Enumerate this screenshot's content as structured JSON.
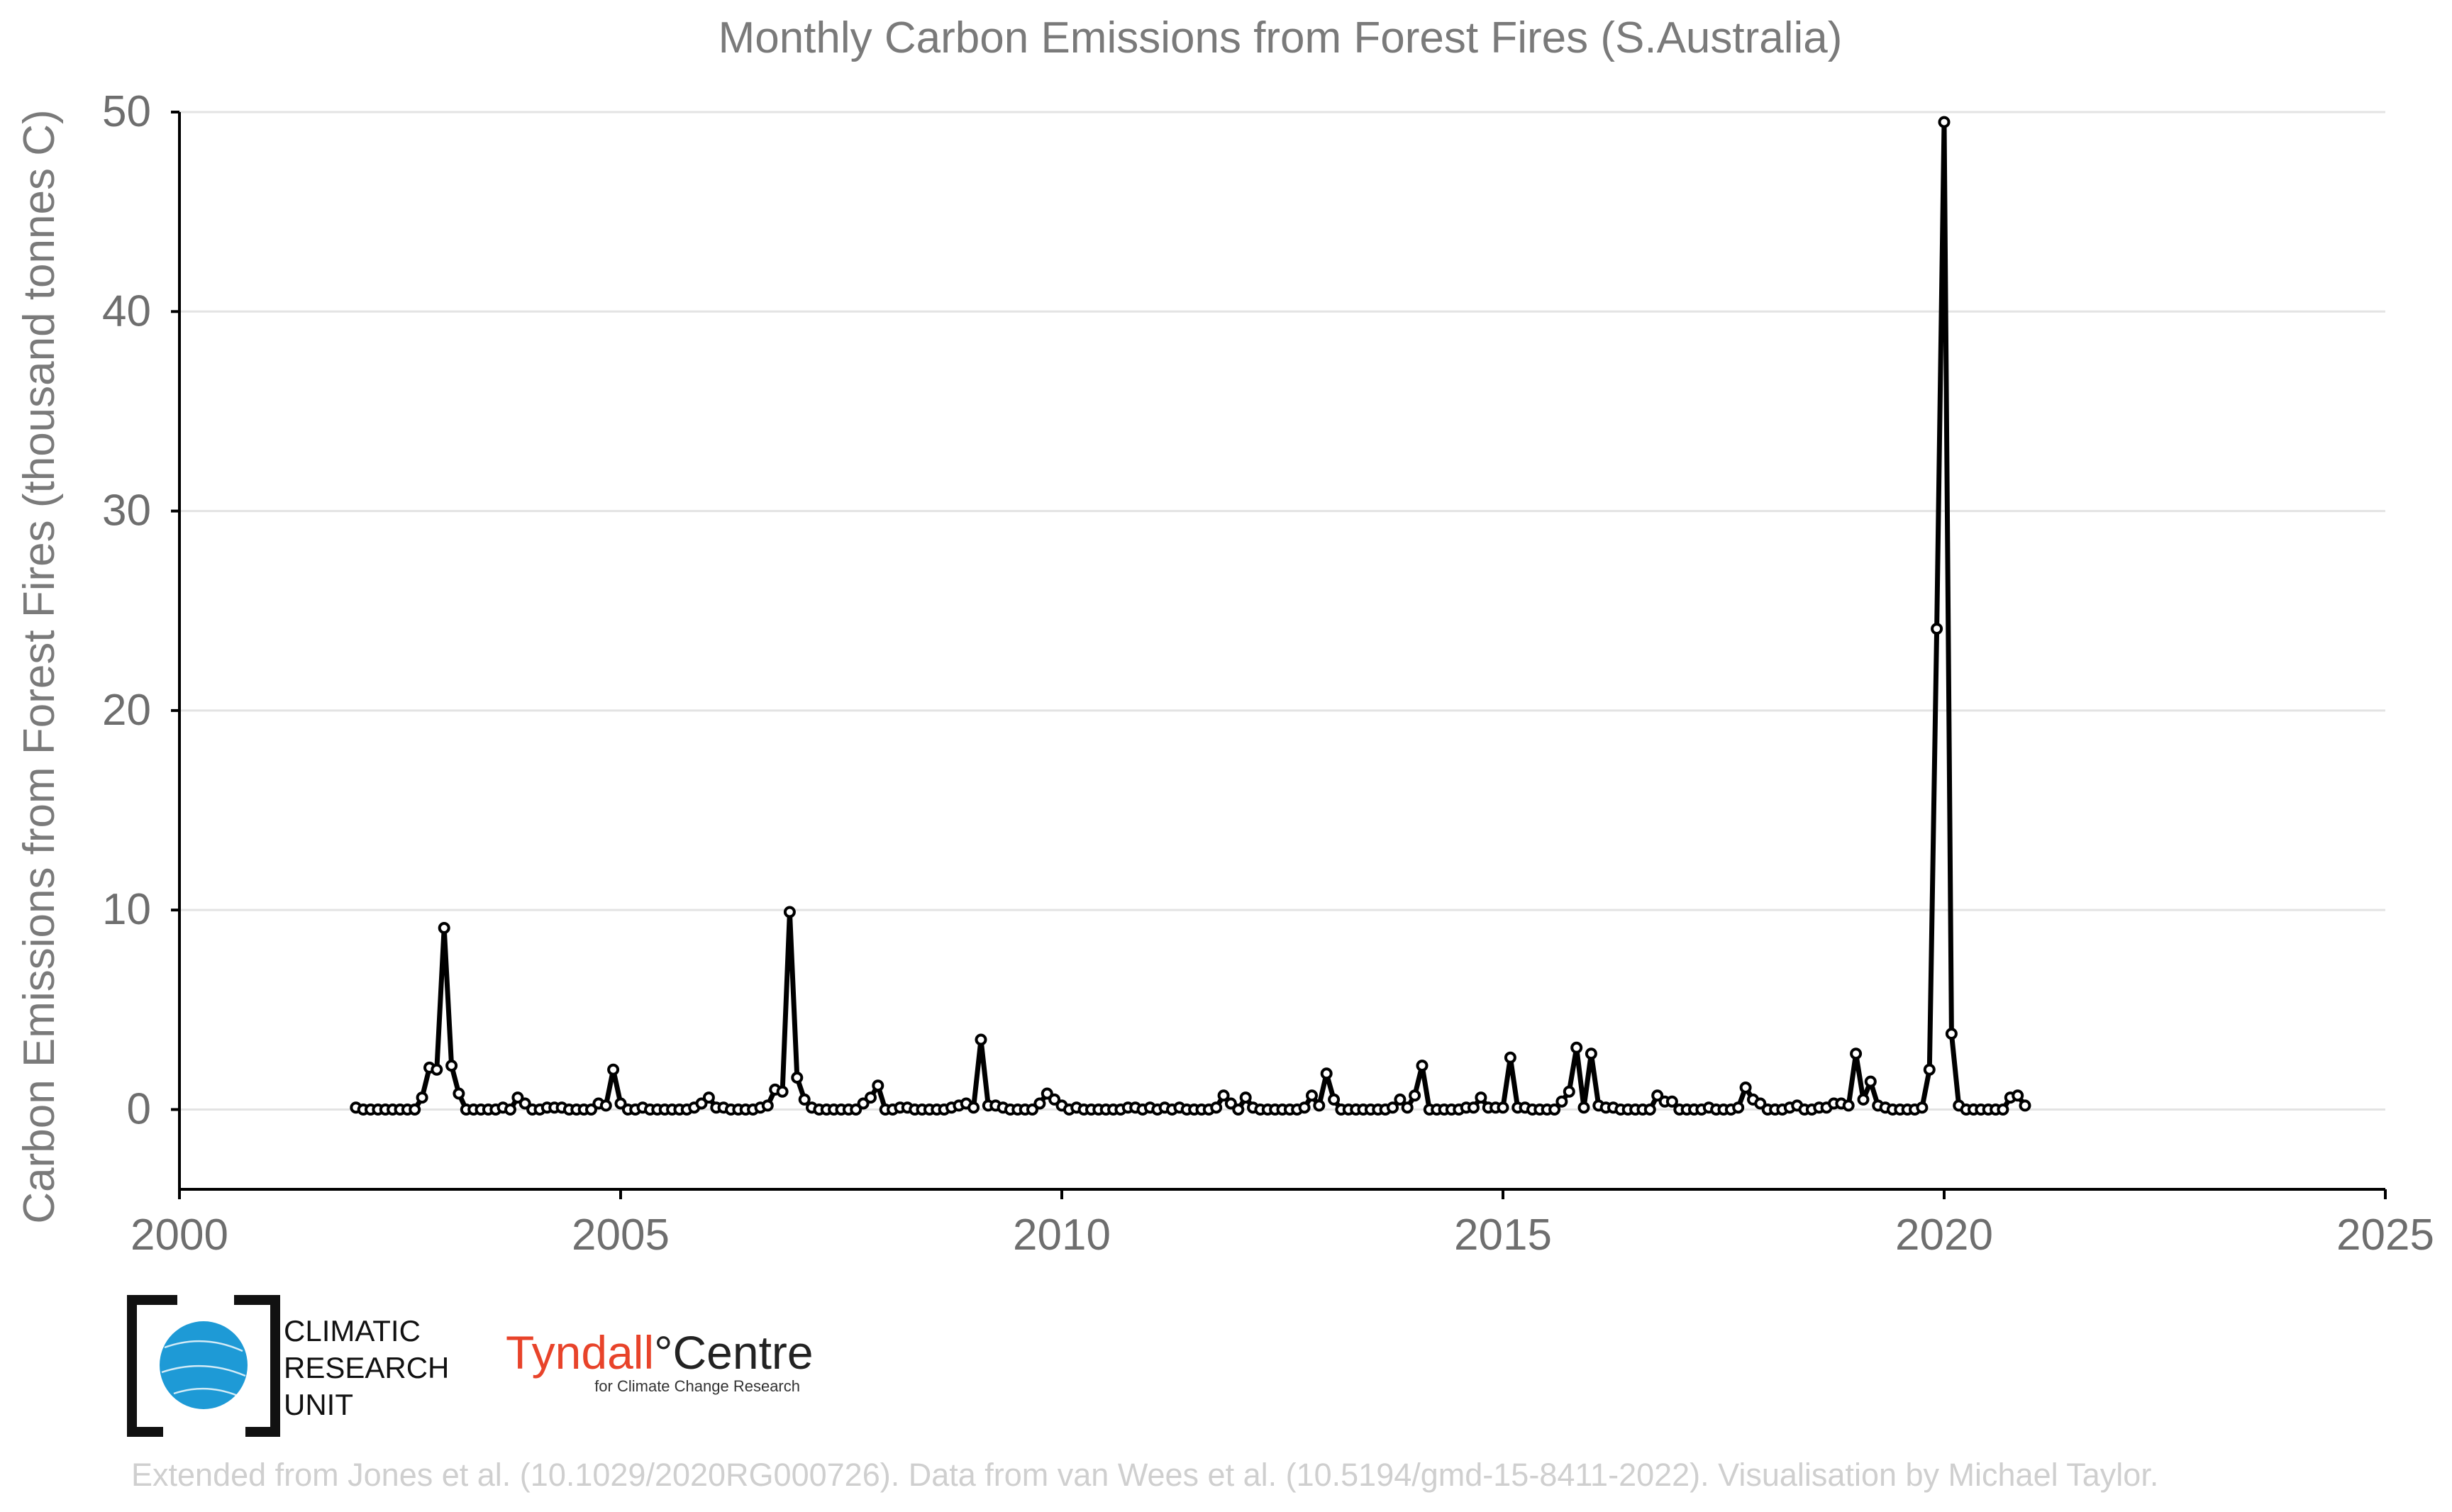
{
  "chart_data": {
    "type": "line",
    "title": "Monthly Carbon Emissions from Forest Fires (S.Australia)",
    "xlabel": "",
    "ylabel": "Carbon Emissions from Forest Fires (thousand tonnes C)",
    "xlim": [
      2000,
      2025
    ],
    "ylim": [
      -4,
      50
    ],
    "x_ticks": [
      2000,
      2005,
      2010,
      2015,
      2020,
      2025
    ],
    "y_ticks": [
      0,
      10,
      20,
      30,
      40,
      50
    ],
    "grid": true,
    "legend": "none",
    "series_color": "#000000",
    "x_start": "2002-01",
    "x_step": "monthly",
    "series": [
      {
        "values": [
          0.1,
          0.0,
          0.0,
          0.0,
          0.0,
          0.0,
          0.0,
          0.0,
          0.0,
          0.6,
          2.1,
          2.0,
          9.1,
          2.2,
          0.8,
          0.0,
          0.0,
          0.0,
          0.0,
          0.0,
          0.1,
          0.0,
          0.6,
          0.3,
          0.0,
          0.0,
          0.1,
          0.1,
          0.1,
          0.0,
          0.0,
          0.0,
          0.0,
          0.3,
          0.2,
          2.0,
          0.3,
          0.0,
          0.0,
          0.1,
          0.0,
          0.0,
          0.0,
          0.0,
          0.0,
          0.0,
          0.1,
          0.3,
          0.6,
          0.1,
          0.1,
          0.0,
          0.0,
          0.0,
          0.0,
          0.1,
          0.2,
          1.0,
          0.9,
          9.9,
          1.6,
          0.5,
          0.1,
          0.0,
          0.0,
          0.0,
          0.0,
          0.0,
          0.0,
          0.3,
          0.6,
          1.2,
          0.0,
          0.0,
          0.1,
          0.1,
          0.0,
          0.0,
          0.0,
          0.0,
          0.0,
          0.1,
          0.2,
          0.3,
          0.1,
          3.5,
          0.2,
          0.2,
          0.1,
          0.0,
          0.0,
          0.0,
          0.0,
          0.3,
          0.8,
          0.5,
          0.2,
          0.0,
          0.1,
          0.0,
          0.0,
          0.0,
          0.0,
          0.0,
          0.0,
          0.1,
          0.1,
          0.0,
          0.1,
          0.0,
          0.1,
          0.0,
          0.1,
          0.0,
          0.0,
          0.0,
          0.0,
          0.1,
          0.7,
          0.3,
          0.0,
          0.6,
          0.1,
          0.0,
          0.0,
          0.0,
          0.0,
          0.0,
          0.0,
          0.1,
          0.7,
          0.2,
          1.8,
          0.5,
          0.0,
          0.0,
          0.0,
          0.0,
          0.0,
          0.0,
          0.0,
          0.1,
          0.5,
          0.1,
          0.7,
          2.2,
          0.0,
          0.0,
          0.0,
          0.0,
          0.0,
          0.1,
          0.1,
          0.6,
          0.1,
          0.1,
          0.1,
          2.6,
          0.1,
          0.1,
          0.0,
          0.0,
          0.0,
          0.0,
          0.4,
          0.9,
          3.1,
          0.1,
          2.8,
          0.2,
          0.1,
          0.1,
          0.0,
          0.0,
          0.0,
          0.0,
          0.0,
          0.7,
          0.4,
          0.4,
          0.0,
          0.0,
          0.0,
          0.0,
          0.1,
          0.0,
          0.0,
          0.0,
          0.1,
          1.1,
          0.5,
          0.3,
          0.0,
          0.0,
          0.0,
          0.1,
          0.2,
          0.0,
          0.0,
          0.1,
          0.1,
          0.3,
          0.3,
          0.2,
          2.8,
          0.5,
          1.4,
          0.2,
          0.1,
          0.0,
          0.0,
          0.0,
          0.0,
          0.1,
          2.0,
          24.1,
          49.5,
          3.8,
          0.2,
          0.0,
          0.0,
          0.0,
          0.0,
          0.0,
          0.0,
          0.6,
          0.7,
          0.2
        ]
      }
    ]
  },
  "logos": {
    "cru": {
      "lines": [
        "CLIMATIC",
        "RESEARCH",
        "UNIT"
      ],
      "accent": "#1e9ad6"
    },
    "tyndall": {
      "word_a": "Tyndall",
      "word_b": "°Centre",
      "sub": "for Climate Change Research",
      "accent": "#e8432a"
    }
  },
  "credit": "Extended from Jones et al. (10.1029/2020RG000726). Data from van Wees et al. (10.5194/gmd-15-8411-2022). Visualisation by Michael Taylor."
}
